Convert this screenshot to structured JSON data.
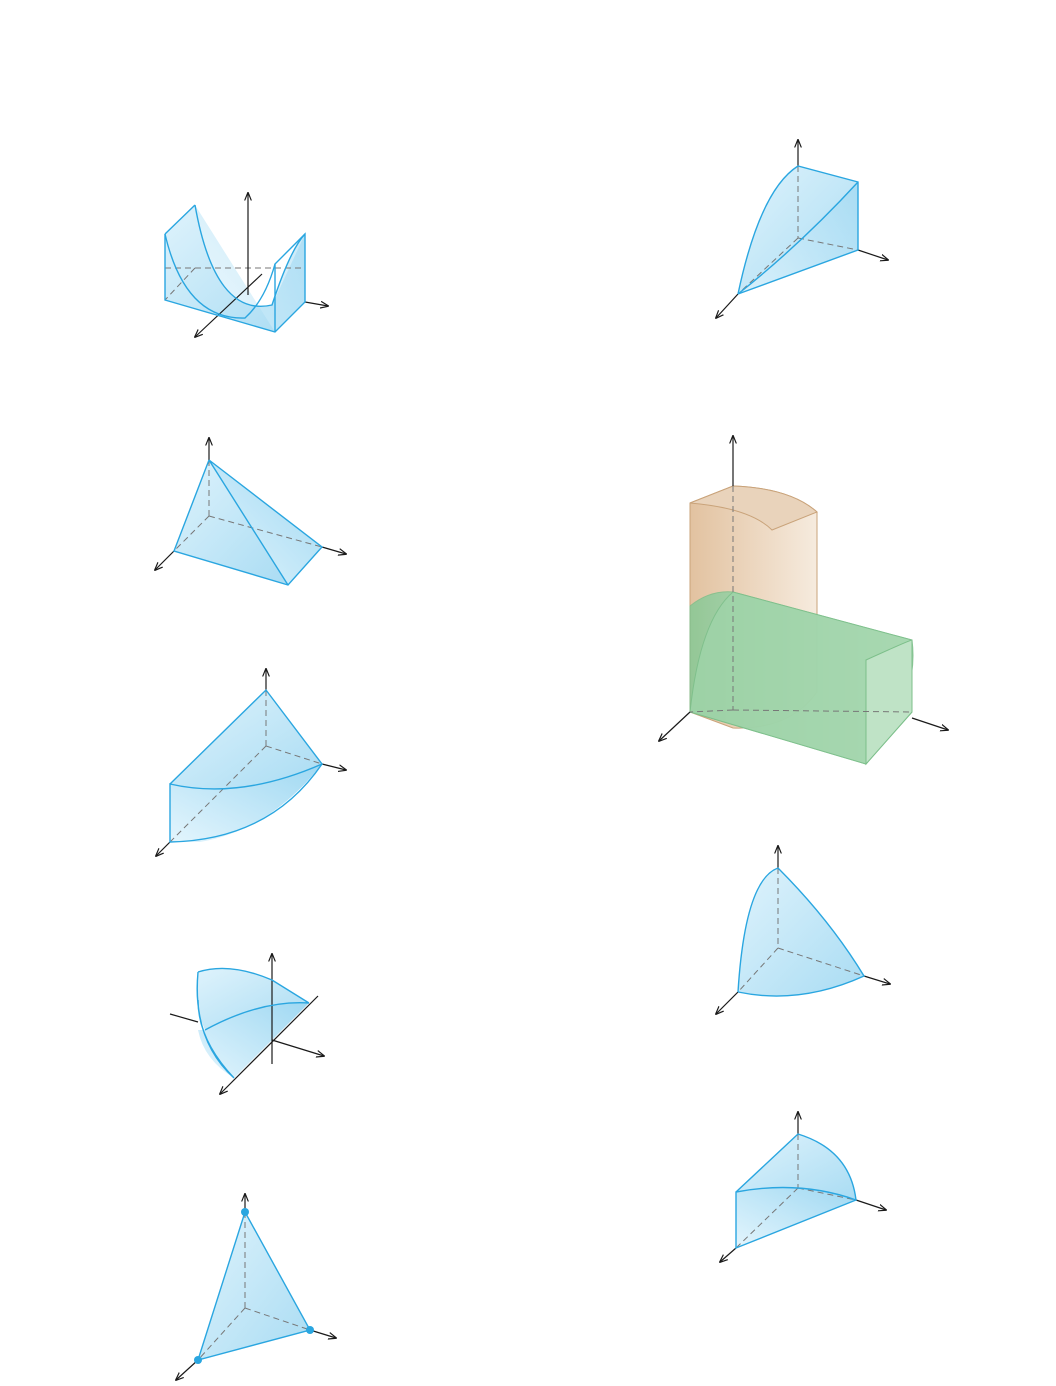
{
  "figures": [
    {
      "id": "fig-1",
      "description_icon": "parabolic-cylinder-solid-icon"
    },
    {
      "id": "fig-2",
      "description_icon": "curved-wedge-solid-icon"
    },
    {
      "id": "fig-3",
      "description_icon": "tetrahedral-wedge-solid-icon"
    },
    {
      "id": "fig-4",
      "description_icon": "intersecting-cylinders-solid-icon"
    },
    {
      "id": "fig-5",
      "description_icon": "parabolic-wedge-solid-icon"
    },
    {
      "id": "fig-6",
      "description_icon": "curved-cone-solid-icon"
    },
    {
      "id": "fig-7",
      "description_icon": "half-paraboloid-solid-icon"
    },
    {
      "id": "fig-8",
      "description_icon": "quarter-cylinder-wedge-icon"
    },
    {
      "id": "fig-9",
      "description_icon": "tetrahedron-with-vertices-icon"
    }
  ],
  "colors": {
    "edge": "#2aa6e0",
    "fill": "#bfe6f7",
    "tan": "#e6c9a8",
    "green": "#8fcf9b",
    "axis": "#1a1a1a"
  }
}
